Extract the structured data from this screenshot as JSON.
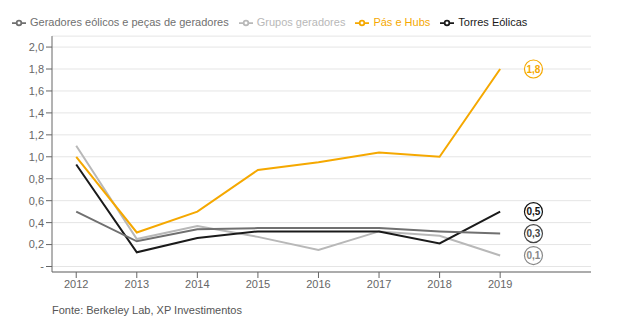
{
  "chart_data": {
    "type": "line",
    "x": [
      2012,
      2013,
      2014,
      2015,
      2016,
      2017,
      2018,
      2019
    ],
    "series": [
      {
        "name": "Grupos geradores",
        "color": "#b8b8b8",
        "values": [
          1.1,
          0.25,
          0.37,
          0.27,
          0.15,
          0.32,
          0.28,
          0.1
        ]
      },
      {
        "name": "Torres Eólicas",
        "color": "#1a1a1a",
        "values": [
          0.93,
          0.13,
          0.26,
          0.32,
          0.32,
          0.32,
          0.21,
          0.5
        ]
      },
      {
        "name": "Pás e Hubs",
        "color": "#f5a800",
        "values": [
          1.0,
          0.31,
          0.5,
          0.88,
          0.95,
          1.04,
          1.0,
          1.8
        ]
      },
      {
        "name": "Geradores eólicos e peças de geradores",
        "color": "#707070",
        "values": [
          0.5,
          0.23,
          0.34,
          0.35,
          0.35,
          0.35,
          0.32,
          0.3
        ]
      }
    ],
    "annotations": [
      {
        "text": "1,8",
        "x": 2019.55,
        "y": 1.8,
        "color": "#f5a800"
      },
      {
        "text": "0,5",
        "x": 2019.55,
        "y": 0.5,
        "color": "#111111"
      },
      {
        "text": "0,3",
        "x": 2019.55,
        "y": 0.3,
        "color": "#444444"
      },
      {
        "text": "0,1",
        "x": 2019.55,
        "y": 0.1,
        "color": "#888888"
      }
    ],
    "xlim": [
      2011.6,
      2020.5
    ],
    "xticks": [
      2012,
      2013,
      2014,
      2015,
      2016,
      2017,
      2018,
      2019
    ],
    "ylim": [
      -0.05,
      2.1
    ],
    "yticks": [
      {
        "value": 0.0,
        "label": "-"
      },
      {
        "value": 0.2,
        "label": "0,2"
      },
      {
        "value": 0.4,
        "label": "0,4"
      },
      {
        "value": 0.6,
        "label": "0,6"
      },
      {
        "value": 0.8,
        "label": "0,8"
      },
      {
        "value": 1.0,
        "label": "1,0"
      },
      {
        "value": 1.2,
        "label": "1,2"
      },
      {
        "value": 1.4,
        "label": "1,4"
      },
      {
        "value": 1.6,
        "label": "1,6"
      },
      {
        "value": 1.8,
        "label": "1,8"
      },
      {
        "value": 2.0,
        "label": "2,0"
      }
    ],
    "grid": true,
    "legend": "upper left",
    "footer": "Fonte: Berkeley Lab, XP Investimentos"
  }
}
